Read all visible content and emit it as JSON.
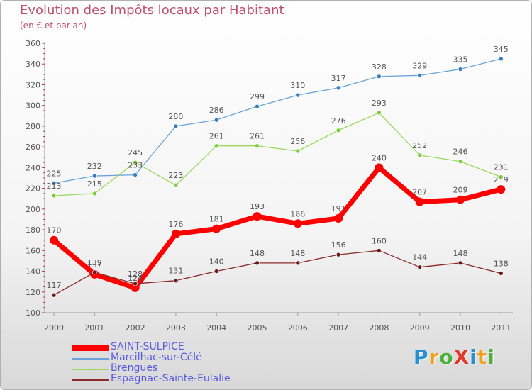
{
  "title": "Evolution des Impôts locaux par Habitant",
  "subtitle": "(en € et par an)",
  "logo": {
    "text": "ProXiti",
    "letters": [
      "P",
      "r",
      "o",
      "X",
      "i",
      "t",
      "i"
    ],
    "colors": [
      "#2a8fd0",
      "#f0a020",
      "#4caf3a",
      "#e03a2a",
      "#2a8fd0",
      "#f0a020",
      "#4caf3a"
    ]
  },
  "chart_data": {
    "type": "line",
    "x": [
      "2000",
      "2001",
      "2002",
      "2003",
      "2004",
      "2005",
      "2006",
      "2007",
      "2008",
      "2009",
      "2010",
      "2011"
    ],
    "ylim": [
      100,
      360
    ],
    "yticks": [
      "100",
      "120",
      "140",
      "160",
      "180",
      "200",
      "220",
      "240",
      "260",
      "280",
      "300",
      "320",
      "340",
      "360"
    ],
    "grid": false,
    "legend_position": "bottom-left",
    "series": [
      {
        "name": "Marcilhac-sur-Célé",
        "color": "#6aa4d8",
        "marker_color": "#3a7cc0",
        "values": [
          225,
          232,
          233,
          280,
          286,
          299,
          310,
          317,
          328,
          329,
          335,
          345
        ]
      },
      {
        "name": "Brengues",
        "color": "#9ad860",
        "marker_color": "#7acc3a",
        "values": [
          213,
          215,
          245,
          223,
          261,
          261,
          256,
          276,
          293,
          252,
          246,
          231
        ]
      },
      {
        "name": "SAINT-SULPICE",
        "color": "#ff0000",
        "marker_color": "#ff0000",
        "bold": true,
        "values": [
          170,
          137,
          124,
          176,
          181,
          193,
          186,
          191,
          240,
          207,
          209,
          219
        ]
      },
      {
        "name": "Espagnac-Sainte-Eulalie",
        "color": "#8b2a2a",
        "marker_color": "#6a1818",
        "values": [
          117,
          139,
          128,
          131,
          140,
          148,
          148,
          156,
          160,
          144,
          148,
          138
        ]
      }
    ],
    "legend_order": [
      "SAINT-SULPICE",
      "Marcilhac-sur-Célé",
      "Brengues",
      "Espagnac-Sainte-Eulalie"
    ]
  }
}
